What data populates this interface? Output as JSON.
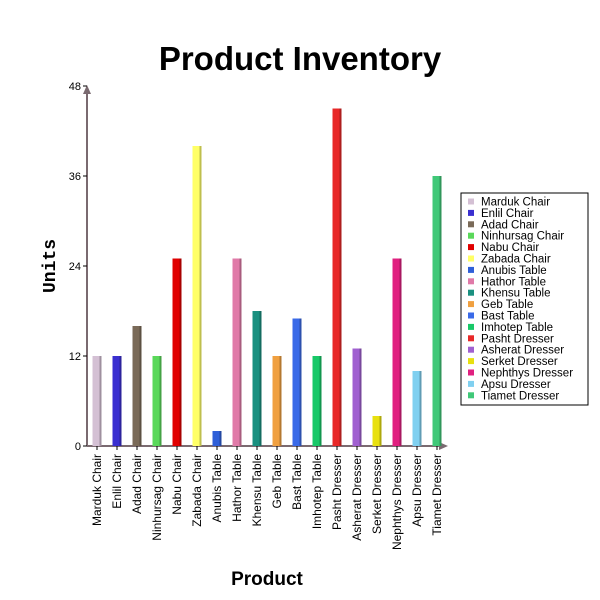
{
  "chart_data": {
    "type": "bar",
    "title": "Product Inventory",
    "xlabel": "Product",
    "ylabel": "Units",
    "ylim": [
      0,
      48
    ],
    "yticks": [
      0,
      12,
      24,
      36,
      48
    ],
    "grid": false,
    "legend_position": "right",
    "categories": [
      "Marduk Chair",
      "Enlil Chair",
      "Adad Chair",
      "Ninhursag Chair",
      "Nabu Chair",
      "Zabada Chair",
      "Anubis Table",
      "Hathor Table",
      "Khensu Table",
      "Geb Table",
      "Bast Table",
      "Imhotep Table",
      "Pasht Dresser",
      "Asherat Dresser",
      "Serket Dresser",
      "Nephthys Dresser",
      "Apsu Dresser",
      "Tiamet Dresser"
    ],
    "values": [
      12,
      12,
      16,
      12,
      25,
      40,
      2,
      25,
      18,
      12,
      17,
      12,
      45,
      13,
      4,
      25,
      10,
      36
    ],
    "colors": [
      "#d4c0d4",
      "#3a2fd0",
      "#7a6a58",
      "#5ad85a",
      "#e00000",
      "#ffff66",
      "#2f5fd8",
      "#e07aa8",
      "#1a9080",
      "#f0a040",
      "#3a6ae8",
      "#18c868",
      "#e82828",
      "#a060d0",
      "#e8e010",
      "#e02080",
      "#80d0f0",
      "#40c878"
    ]
  }
}
